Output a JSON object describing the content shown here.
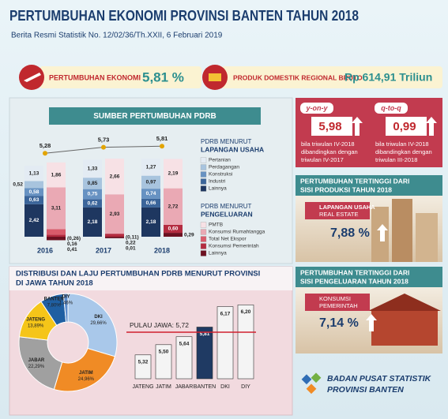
{
  "header": {
    "title": "PERTUMBUHAN EKONOMI PROVINSI BANTEN TAHUN 2018",
    "subtitle": "Berita Resmi Statistik No. 12/02/36/Th.XXII, 6 Februari 2019"
  },
  "highlights": [
    {
      "label": "PERTUMBUHAN EKONOMI",
      "value": "5,81 %"
    },
    {
      "label": "PRODUK DOMESTIK REGIONAL BRUTO",
      "value": "Rp 614,91 Triliun"
    }
  ],
  "quarterly": [
    {
      "label": "y-on-y",
      "value": "5,98",
      "note": [
        "bila triwulan IV-2018",
        "dibandingkan dengan",
        "triwulan IV-2017"
      ]
    },
    {
      "label": "q-to-q",
      "value": "0,99",
      "note": [
        "bila triwulan IV-2018",
        "dibandingkan dengan",
        "triwulan III-2018"
      ]
    }
  ],
  "highest": [
    {
      "title": [
        "PERTUMBUHAN TERTINGGI DARI",
        "SISI PRODUKSI TAHUN 2018"
      ],
      "category": "LAPANGAN USAHA",
      "item": "REAL ESTATE",
      "value": "7,88 %"
    },
    {
      "title": [
        "PERTUMBUHAN TERTINGGI DARI",
        "SISI PENGELUARAN TAHUN 2018"
      ],
      "category": "KONSUMSI",
      "item": "PEMERINTAH",
      "value": "7,14 %"
    }
  ],
  "footer": [
    "BADAN PUSAT STATISTIK",
    "PROVINSI BANTEN"
  ],
  "chart_data": [
    {
      "type": "bar",
      "stacked": true,
      "title": "SUMBER PERTUMBUHAN PDRB",
      "categories": [
        "2016",
        "2017",
        "2018"
      ],
      "groups": [
        {
          "legend_title": "PDRB MENURUT",
          "legend_subtitle": "LAPANGAN USAHA",
          "series": [
            {
              "name": "Pertanian",
              "color": "#e3ebf3",
              "values": [
                1.13,
                1.33,
                1.27
              ],
              "value_labels": [
                "1,13",
                "1,33",
                "1,27"
              ]
            },
            {
              "name": "Perdagangan",
              "color": "#a8c4de",
              "values": [
                0.52,
                0.85,
                0.97
              ],
              "value_labels": [
                "0,52",
                "0,85",
                "0,97"
              ]
            },
            {
              "name": "Konstruksi",
              "color": "#6792c2",
              "values": [
                0.58,
                0.75,
                0.74
              ],
              "value_labels": [
                "0,58",
                "0,75",
                "0,74"
              ]
            },
            {
              "name": "Industri",
              "color": "#3b659a",
              "values": [
                0.63,
                0.62,
                0.66
              ],
              "value_labels": [
                "0,63",
                "0,62",
                "0,66"
              ]
            },
            {
              "name": "Lainnya",
              "color": "#1e3760",
              "values": [
                2.42,
                2.18,
                2.18
              ],
              "value_labels": [
                "2,42",
                "2,18",
                "2,18"
              ]
            }
          ]
        },
        {
          "legend_title": "PDRB MENURUT",
          "legend_subtitle": "PENGELUARAN",
          "series": [
            {
              "name": "PMTB",
              "color": "#f7e1e5",
              "values": [
                1.86,
                2.66,
                2.19
              ],
              "value_labels": [
                "1,86",
                "2,66",
                "2,19"
              ]
            },
            {
              "name": "Konsumsi Rumahtangga",
              "color": "#eaa9b4",
              "values": [
                3.11,
                2.93,
                2.72
              ],
              "value_labels": [
                "3,11",
                "2,93",
                "2,72"
              ]
            },
            {
              "name": "Total Net Ekspor",
              "color": "#d95b6b",
              "values": [
                0.41,
                0.01,
                null
              ],
              "value_labels": [
                "0,41",
                "0,01",
                null
              ]
            },
            {
              "name": "Konsumsi Pemerintah",
              "color": "#b42c40",
              "values": [
                0.16,
                0.22,
                0.6
              ],
              "value_labels": [
                "0,16",
                "0,22",
                "0,60"
              ]
            },
            {
              "name": "Lainnya",
              "color": "#6c1121",
              "values": [
                -0.26,
                -0.11,
                0.29
              ],
              "value_labels": [
                "(0,26)",
                "(0,11)",
                "0,29"
              ]
            }
          ]
        }
      ],
      "total": {
        "values": [
          5.28,
          5.73,
          5.81
        ],
        "value_labels": [
          "5,28",
          "5,73",
          "5,81"
        ],
        "color": "#e2a400"
      }
    },
    {
      "type": "pie",
      "donut": true,
      "title": [
        "DISTRIBUSI DAN LAJU PERTUMBUHAN PDRB MENURUT PROVINSI",
        "DI JAWA TAHUN 2018"
      ],
      "categories": [
        "DKI",
        "JATIM",
        "JABAR",
        "JATENG",
        "BANTEN",
        "DIY"
      ],
      "values": [
        29.66,
        24.96,
        22.29,
        13.89,
        7.8,
        1.46
      ],
      "value_labels": [
        "29,66%",
        "24,96%",
        "22,29%",
        "13,89%",
        "7,80%",
        "1,46%"
      ],
      "colors": [
        "#a9c8ea",
        "#f08b25",
        "#a0a0a0",
        "#f5c519",
        "#1f5fa2",
        "#5b8ccc"
      ]
    },
    {
      "type": "bar",
      "categories": [
        "JATENG",
        "JATIM",
        "JABAR",
        "BANTEN",
        "DKI",
        "DIY"
      ],
      "values": [
        5.32,
        5.5,
        5.64,
        5.81,
        6.17,
        6.2
      ],
      "value_labels": [
        "5,32",
        "5,50",
        "5,64",
        "5,81",
        "6,17",
        "6,20"
      ],
      "colors": [
        "#f4f4f4",
        "#f4f4f4",
        "#f4f4f4",
        "#1f3a63",
        "#f4f4f4",
        "#f4f4f4"
      ],
      "ylim": [
        4.9,
        6.4
      ],
      "reference": {
        "value": 5.72,
        "label": "PULAU JAWA: 5,72",
        "color": "#d0202e"
      }
    }
  ]
}
